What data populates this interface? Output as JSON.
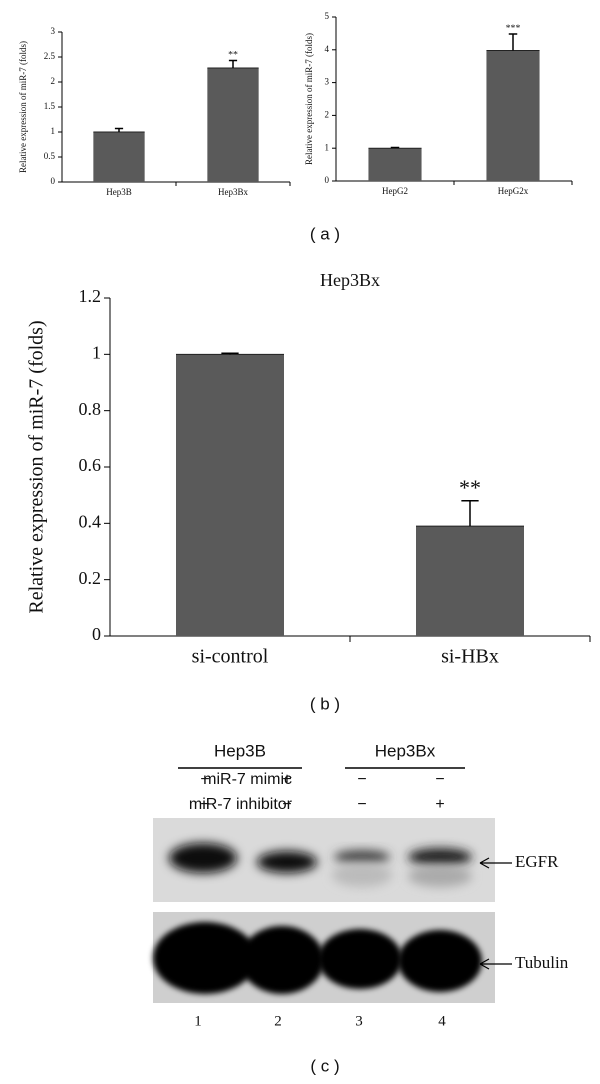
{
  "chart_data": [
    {
      "type": "bar",
      "categories": [
        "Hep3B",
        "Hep3Bx"
      ],
      "values": [
        1.0,
        2.28
      ],
      "errors": [
        0.07,
        0.15
      ],
      "significance": [
        null,
        "**"
      ],
      "color": "#5a5a5a",
      "ylabel": "Relative expression of miR-7 (folds)",
      "ylim": [
        0,
        3
      ],
      "yticks": [
        0,
        0.5,
        1,
        1.5,
        2,
        2.5,
        3
      ]
    },
    {
      "type": "bar",
      "categories": [
        "HepG2",
        "HepG2x"
      ],
      "values": [
        1.0,
        3.98
      ],
      "errors": [
        0.02,
        0.5
      ],
      "significance": [
        null,
        "***"
      ],
      "color": "#5a5a5a",
      "ylabel": "Relative expression of miR-7 (folds)",
      "ylim": [
        0,
        5
      ],
      "yticks": [
        0,
        1,
        2,
        3,
        4,
        5
      ]
    },
    {
      "type": "bar",
      "title": "Hep3Bx",
      "categories": [
        "si-control",
        "si-HBx"
      ],
      "values": [
        1.0,
        0.39
      ],
      "errors": [
        0.004,
        0.09
      ],
      "significance": [
        null,
        "**"
      ],
      "color": "#5a5a5a",
      "ylabel": "Relative expression of miR-7 (folds)",
      "ylim": [
        0,
        1.2
      ],
      "yticks": [
        0,
        0.2,
        0.4,
        0.6,
        0.8,
        1,
        1.2
      ]
    }
  ],
  "panel_labels": [
    "( a )",
    "( b )",
    "( c )"
  ],
  "blot": {
    "groups": [
      "Hep3B",
      "Hep3Bx"
    ],
    "rows": [
      {
        "label": "miR-7 mimic",
        "signs": [
          "−",
          "+",
          "−",
          "−"
        ]
      },
      {
        "label": "miR-7 inhibitor",
        "signs": [
          "−",
          "−",
          "−",
          "+"
        ]
      }
    ],
    "bands": [
      "EGFR",
      "Tubulin"
    ],
    "lanes": [
      "1",
      "2",
      "3",
      "4"
    ]
  }
}
